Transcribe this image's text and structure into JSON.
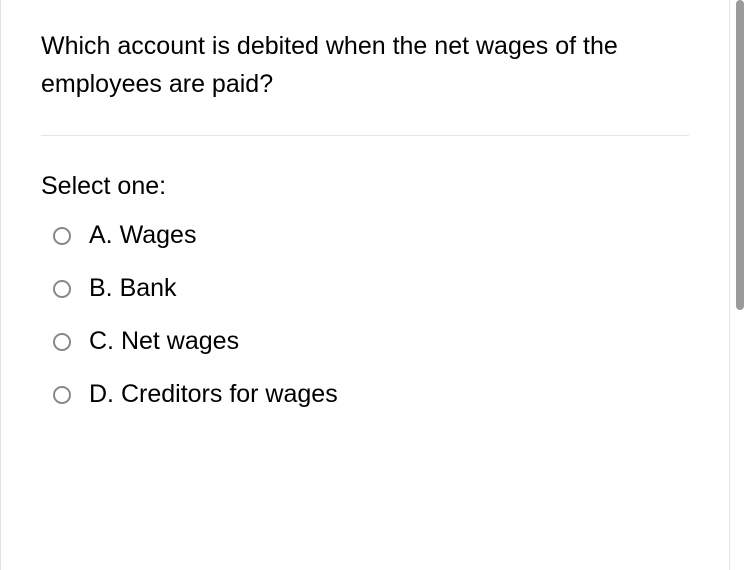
{
  "question": {
    "text": "Which account is debited when the net wages of the employees are paid?",
    "prompt": "Select one:",
    "options": [
      {
        "letter": "A.",
        "label": "Wages"
      },
      {
        "letter": "B.",
        "label": "Bank"
      },
      {
        "letter": "C.",
        "label": "Net wages"
      },
      {
        "letter": "D.",
        "label": "Creditors for wages"
      }
    ]
  },
  "colors": {
    "text": "#000000",
    "border": "#e5e5e5",
    "radio_border": "#888888",
    "background": "#ffffff",
    "scrollbar": "#9a9a9a"
  },
  "typography": {
    "font_family": "-apple-system, BlinkMacSystemFont, Segoe UI, Helvetica, Arial, sans-serif",
    "question_fontsize": 25,
    "option_fontsize": 25
  }
}
